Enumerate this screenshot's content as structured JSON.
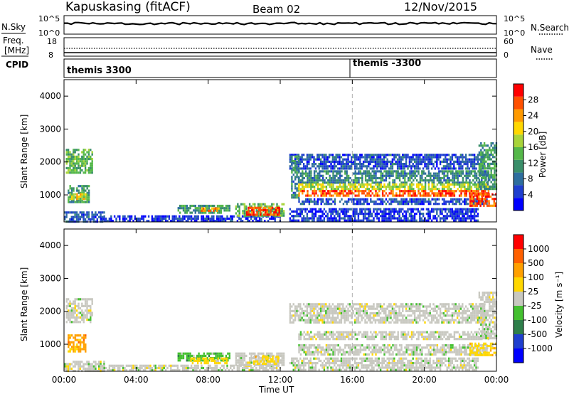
{
  "header": {
    "station": "Kapuskasing (fitACF)",
    "beam": "Beam 02",
    "date": "12/Nov/2015"
  },
  "noise_panel": {
    "left_label": "N.Sky",
    "left_ticks": [
      "10^5",
      "10^0"
    ],
    "right_ticks": [
      "10^5",
      "10^0"
    ],
    "right_label": "N.Search"
  },
  "freq_panel": {
    "left_label_1": "Freq.",
    "left_label_2": "[MHz]",
    "left_ticks": [
      "18",
      "8"
    ],
    "right_ticks": [
      "60",
      "0"
    ],
    "right_label": "Nave"
  },
  "cpid_panel": {
    "label": "CPID",
    "entries": [
      {
        "time_h": 0,
        "text": "themis 3300"
      },
      {
        "time_h": 16,
        "text": "themis -3300"
      }
    ]
  },
  "chart_data": [
    {
      "type": "heatmap",
      "quantity": "Power",
      "ylabel": "Slant Range [km]",
      "colorbar_label": "Power [dB]",
      "colorbar_ticks": [
        "28",
        "24",
        "20",
        "16",
        "12",
        "8",
        "4"
      ],
      "colorbar_range": [
        0,
        32
      ],
      "colors": [
        "#0000ff",
        "#1f3fcf",
        "#2e6e9e",
        "#3a8f6a",
        "#55b84a",
        "#a8d43a",
        "#ffd700",
        "#ff9a00",
        "#ff5000",
        "#ff0000"
      ],
      "xlim": [
        0,
        24
      ],
      "ylim": [
        180,
        4500
      ],
      "yticks": [
        "4000",
        "3000",
        "2000",
        "1000"
      ],
      "regions": [
        {
          "t0": 0.1,
          "t1": 1.6,
          "r0": 1700,
          "r1": 2400,
          "v": 14
        },
        {
          "t0": 0.2,
          "t1": 1.4,
          "r0": 800,
          "r1": 1300,
          "v": 12
        },
        {
          "t0": 0.3,
          "t1": 1.2,
          "r0": 850,
          "r1": 1050,
          "v": 20
        },
        {
          "t0": 0.0,
          "t1": 2.2,
          "r0": 200,
          "r1": 500,
          "v": 6
        },
        {
          "t0": 2.0,
          "t1": 12.0,
          "r0": 180,
          "r1": 380,
          "v": 4
        },
        {
          "t0": 6.3,
          "t1": 9.2,
          "r0": 480,
          "r1": 700,
          "v": 12
        },
        {
          "t0": 7.5,
          "t1": 8.7,
          "r0": 520,
          "r1": 620,
          "v": 24
        },
        {
          "t0": 9.5,
          "t1": 12.2,
          "r0": 350,
          "r1": 750,
          "v": 14
        },
        {
          "t0": 10.1,
          "t1": 11.9,
          "r0": 420,
          "r1": 640,
          "v": 28
        },
        {
          "t0": 12.5,
          "t1": 23.3,
          "r0": 1800,
          "r1": 2250,
          "v": 6
        },
        {
          "t0": 12.6,
          "t1": 13.0,
          "r0": 900,
          "r1": 2200,
          "v": 10
        },
        {
          "t0": 13.0,
          "t1": 23.6,
          "r0": 1350,
          "r1": 1750,
          "v": 10
        },
        {
          "t0": 13.0,
          "t1": 23.6,
          "r0": 1150,
          "r1": 1350,
          "v": 18
        },
        {
          "t0": 13.0,
          "t1": 23.6,
          "r0": 950,
          "r1": 1150,
          "v": 27
        },
        {
          "t0": 13.0,
          "t1": 23.5,
          "r0": 700,
          "r1": 900,
          "v": 6
        },
        {
          "t0": 22.5,
          "t1": 24.0,
          "r0": 650,
          "r1": 1050,
          "v": 28
        },
        {
          "t0": 23.0,
          "t1": 24.0,
          "r0": 1200,
          "r1": 2600,
          "v": 12
        },
        {
          "t0": 12.5,
          "t1": 23.0,
          "r0": 200,
          "r1": 600,
          "v": 4
        }
      ]
    },
    {
      "type": "heatmap",
      "quantity": "Velocity",
      "ylabel": "Slant Range [km]",
      "colorbar_label": "Velocity [m s⁻¹]",
      "colorbar_ticks": [
        "1000",
        "500",
        "100",
        "25",
        "-25",
        "-100",
        "-500",
        "-1000"
      ],
      "colors": [
        "#0000ff",
        "#1f3fcf",
        "#2e7f4a",
        "#44c030",
        "#c8c8c0",
        "#ffd700",
        "#ffa000",
        "#ff6000",
        "#ff0000"
      ],
      "xlim": [
        0,
        24
      ],
      "ylim": [
        180,
        4500
      ],
      "yticks": [
        "4000",
        "3000",
        "2000",
        "1000"
      ],
      "regions": [
        {
          "t0": 0.1,
          "t1": 1.6,
          "r0": 1700,
          "r1": 2400,
          "c": 4
        },
        {
          "t0": 0.2,
          "t1": 1.2,
          "r0": 800,
          "r1": 1300,
          "c": 6
        },
        {
          "t0": 0.0,
          "t1": 2.2,
          "r0": 200,
          "r1": 500,
          "c": 4
        },
        {
          "t0": 2.0,
          "t1": 12.0,
          "r0": 180,
          "r1": 380,
          "c": 4
        },
        {
          "t0": 6.3,
          "t1": 9.2,
          "r0": 480,
          "r1": 750,
          "c": 3
        },
        {
          "t0": 7.0,
          "t1": 9.0,
          "r0": 400,
          "r1": 600,
          "c": 5
        },
        {
          "t0": 9.5,
          "t1": 12.2,
          "r0": 350,
          "r1": 750,
          "c": 4
        },
        {
          "t0": 10.5,
          "t1": 11.9,
          "r0": 380,
          "r1": 650,
          "c": 5
        },
        {
          "t0": 12.5,
          "t1": 23.3,
          "r0": 1650,
          "r1": 2250,
          "c": 4
        },
        {
          "t0": 13.0,
          "t1": 23.6,
          "r0": 1150,
          "r1": 1400,
          "c": 4
        },
        {
          "t0": 13.0,
          "t1": 23.5,
          "r0": 700,
          "r1": 1000,
          "c": 4
        },
        {
          "t0": 22.5,
          "t1": 24.0,
          "r0": 650,
          "r1": 1050,
          "c": 5
        },
        {
          "t0": 23.0,
          "t1": 24.0,
          "r0": 1200,
          "r1": 2600,
          "c": 4
        },
        {
          "t0": 12.5,
          "t1": 23.0,
          "r0": 200,
          "r1": 600,
          "c": 4
        }
      ]
    }
  ],
  "x_axis": {
    "xlabel": "Time UT",
    "tick_labels": [
      "00:00",
      "04:00",
      "08:00",
      "12:00",
      "16:00",
      "20:00",
      "00:00"
    ],
    "tick_hours": [
      0,
      4,
      8,
      12,
      16,
      20,
      24
    ],
    "marker_time_h": 16
  }
}
